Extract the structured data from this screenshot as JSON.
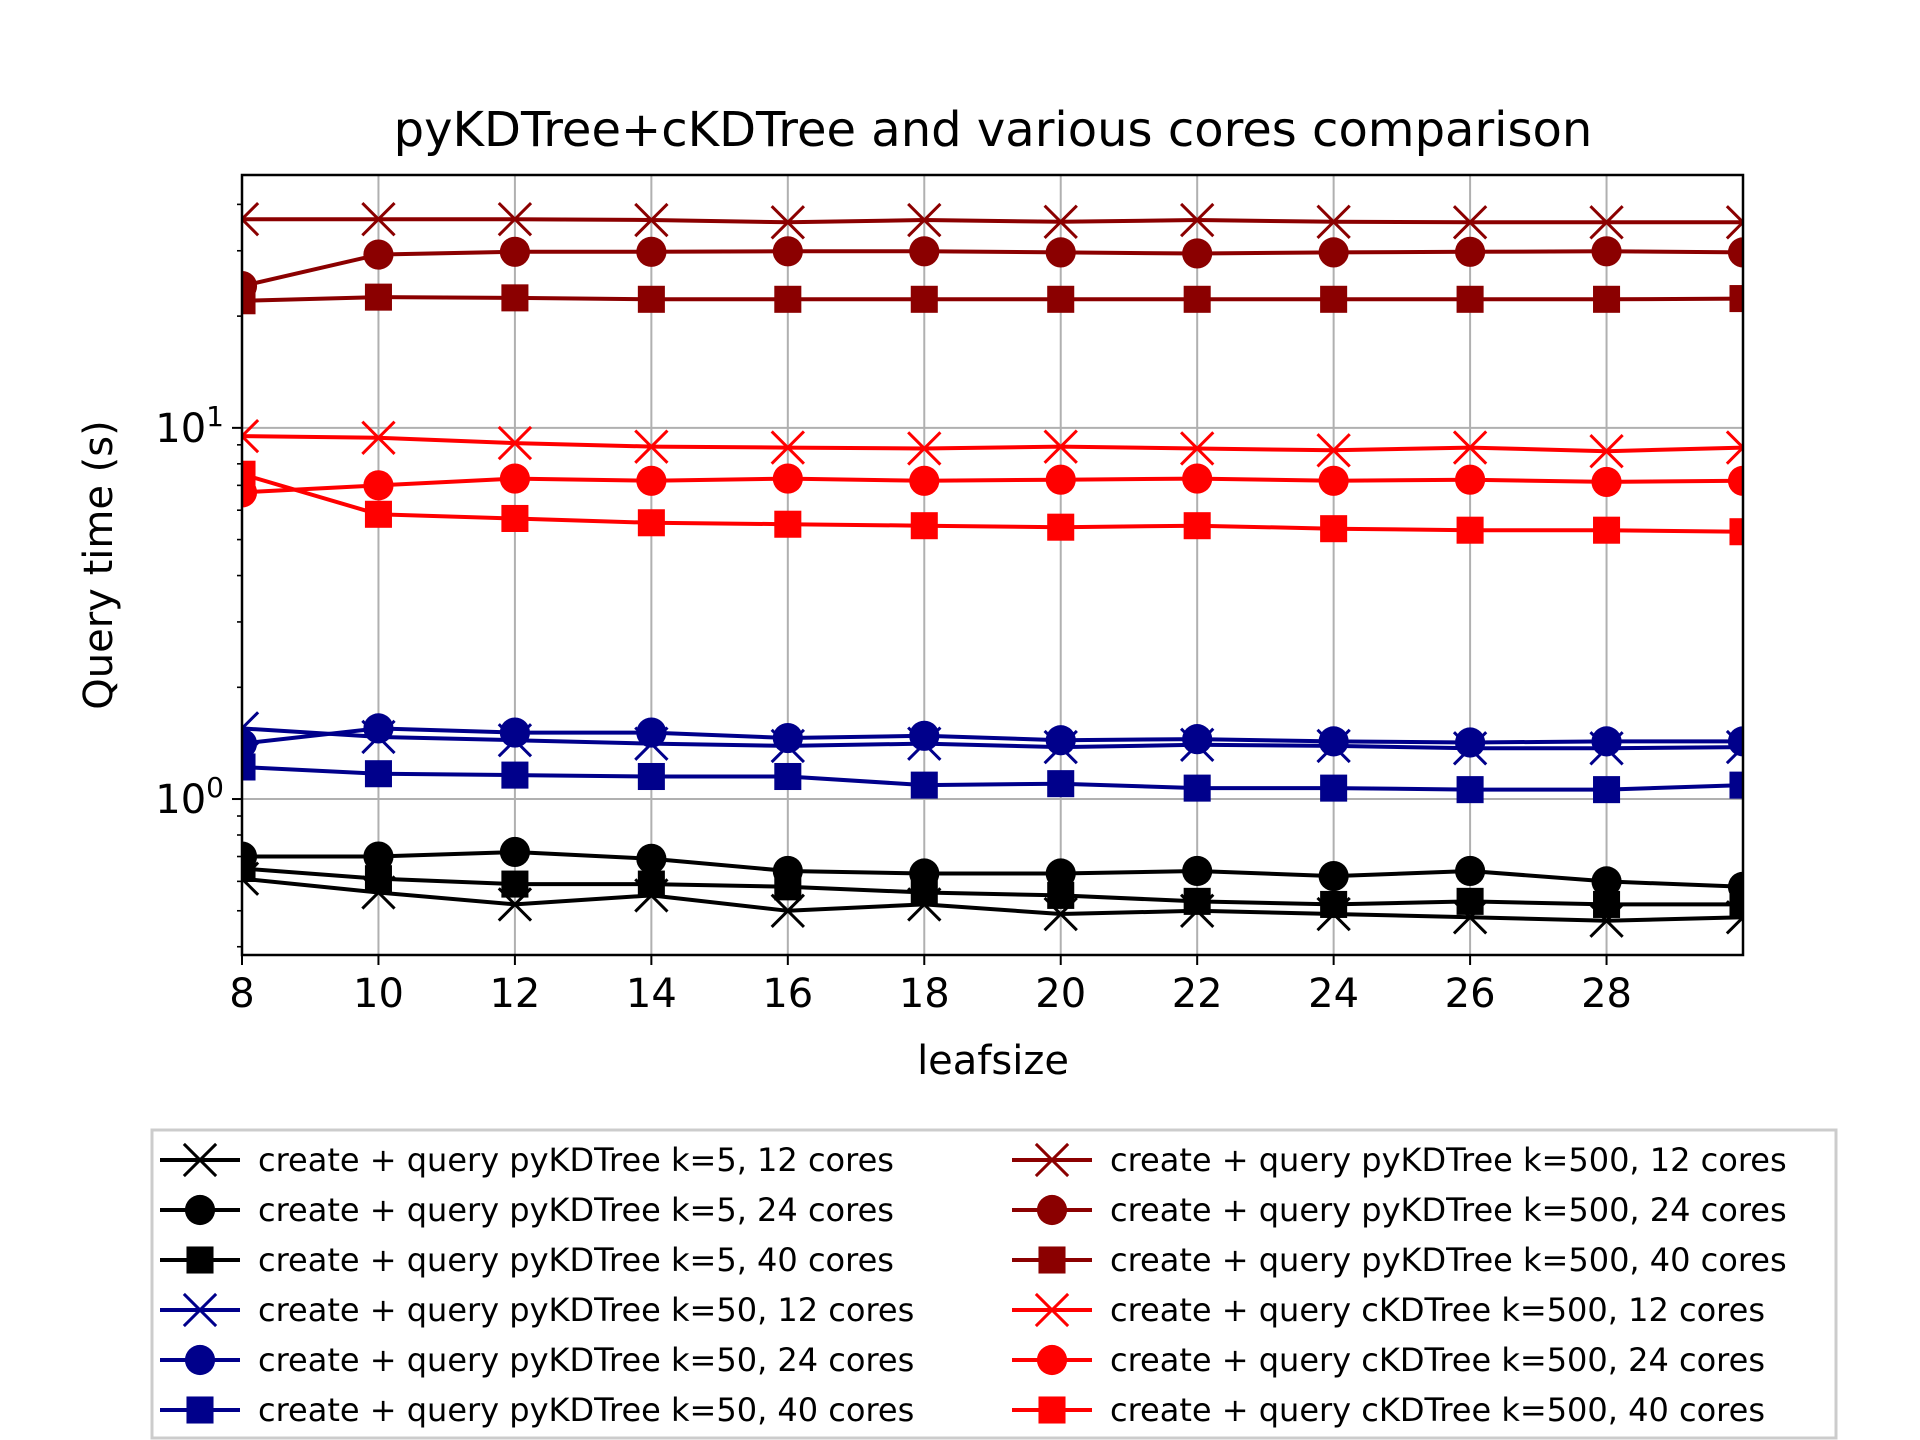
{
  "chart_data": {
    "type": "line",
    "title": "pyKDTree+cKDTree and various cores comparison",
    "xlabel": "leafsize",
    "ylabel": "Query time (s)",
    "yscale": "log",
    "xlim": [
      8,
      30
    ],
    "ylim": [
      0.38,
      48
    ],
    "x_ticks": [
      8,
      10,
      12,
      14,
      16,
      18,
      20,
      22,
      24,
      26,
      28
    ],
    "y_ticks": [
      {
        "value": 1,
        "base": "10",
        "exp": "0"
      },
      {
        "value": 10,
        "base": "10",
        "exp": "1"
      }
    ],
    "grid": true,
    "legend_position": "bottom-center",
    "x": [
      8,
      10,
      12,
      14,
      16,
      18,
      20,
      22,
      24,
      26,
      28,
      30
    ],
    "series": [
      {
        "name": "create + query pyKDTree k=5, 12 cores",
        "color": "#000000",
        "marker": "x",
        "values": [
          0.61,
          0.56,
          0.52,
          0.55,
          0.5,
          0.52,
          0.49,
          0.5,
          0.49,
          0.48,
          0.47,
          0.48
        ]
      },
      {
        "name": "create + query pyKDTree k=5, 24 cores",
        "color": "#000000",
        "marker": "o",
        "values": [
          0.7,
          0.7,
          0.72,
          0.69,
          0.64,
          0.63,
          0.63,
          0.64,
          0.62,
          0.64,
          0.6,
          0.58
        ]
      },
      {
        "name": "create + query pyKDTree k=5, 40 cores",
        "color": "#000000",
        "marker": "s",
        "values": [
          0.65,
          0.61,
          0.59,
          0.59,
          0.58,
          0.56,
          0.55,
          0.53,
          0.52,
          0.53,
          0.52,
          0.52
        ]
      },
      {
        "name": "create + query pyKDTree k=50, 12 cores",
        "color": "#00008b",
        "marker": "x",
        "values": [
          1.55,
          1.47,
          1.44,
          1.41,
          1.39,
          1.41,
          1.38,
          1.4,
          1.39,
          1.37,
          1.37,
          1.38
        ]
      },
      {
        "name": "create + query pyKDTree k=50, 24 cores",
        "color": "#00008b",
        "marker": "o",
        "values": [
          1.41,
          1.55,
          1.51,
          1.51,
          1.46,
          1.48,
          1.44,
          1.45,
          1.43,
          1.42,
          1.43,
          1.43
        ]
      },
      {
        "name": "create + query pyKDTree k=50, 40 cores",
        "color": "#00008b",
        "marker": "s",
        "values": [
          1.22,
          1.17,
          1.16,
          1.15,
          1.15,
          1.09,
          1.1,
          1.07,
          1.07,
          1.06,
          1.06,
          1.09
        ]
      },
      {
        "name": "create + query pyKDTree k=500, 12 cores",
        "color": "#8b0000",
        "marker": "x",
        "values": [
          36.5,
          36.5,
          36.5,
          36.3,
          35.8,
          36.3,
          35.9,
          36.3,
          35.9,
          35.8,
          35.8,
          35.8
        ]
      },
      {
        "name": "create + query pyKDTree k=500, 24 cores",
        "color": "#8b0000",
        "marker": "o",
        "values": [
          24.1,
          29.3,
          29.8,
          29.8,
          29.9,
          29.9,
          29.7,
          29.5,
          29.7,
          29.8,
          29.9,
          29.7
        ]
      },
      {
        "name": "create + query pyKDTree k=500, 40 cores",
        "color": "#8b0000",
        "marker": "s",
        "values": [
          22.0,
          22.5,
          22.4,
          22.2,
          22.2,
          22.2,
          22.2,
          22.2,
          22.2,
          22.2,
          22.2,
          22.3
        ]
      },
      {
        "name": "create + query cKDTree k=500, 12 cores",
        "color": "#ff0000",
        "marker": "x",
        "values": [
          9.5,
          9.4,
          9.1,
          8.9,
          8.85,
          8.8,
          8.9,
          8.8,
          8.7,
          8.85,
          8.65,
          8.85
        ]
      },
      {
        "name": "create + query cKDTree k=500, 24 cores",
        "color": "#ff0000",
        "marker": "o",
        "values": [
          6.7,
          7.0,
          7.3,
          7.2,
          7.3,
          7.2,
          7.25,
          7.3,
          7.2,
          7.25,
          7.15,
          7.2
        ]
      },
      {
        "name": "create + query cKDTree k=500, 40 cores",
        "color": "#ff0000",
        "marker": "s",
        "values": [
          7.5,
          5.85,
          5.7,
          5.55,
          5.5,
          5.45,
          5.4,
          5.45,
          5.35,
          5.3,
          5.3,
          5.25
        ]
      }
    ]
  }
}
